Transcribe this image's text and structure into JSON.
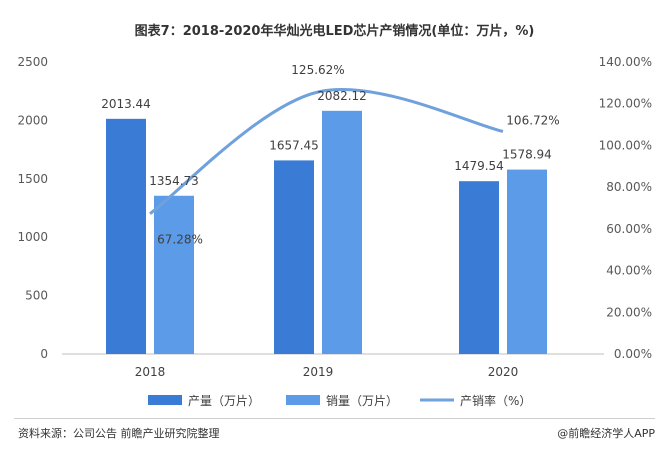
{
  "chart_data": {
    "type": "bar",
    "title": "图表7：2018-2020年华灿光电LED芯片产销情况(单位：万片，%)",
    "categories": [
      "2018",
      "2019",
      "2020"
    ],
    "series": [
      {
        "name": "产量（万片）",
        "kind": "bar",
        "axis": "left",
        "color": "#3a7bd5",
        "values": [
          2013.44,
          1657.45,
          1479.54
        ],
        "labels": [
          "2013.44",
          "1657.45",
          "1479.54"
        ]
      },
      {
        "name": "销量（万片）",
        "kind": "bar",
        "axis": "left",
        "color": "#5b9be8",
        "values": [
          1354.73,
          2082.12,
          1578.94
        ],
        "labels": [
          "1354.73",
          "2082.12",
          "1578.94"
        ]
      },
      {
        "name": "产销率（%）",
        "kind": "line",
        "axis": "right",
        "color": "#6fa1dc",
        "values": [
          67.28,
          125.62,
          106.72
        ],
        "labels": [
          "67.28%",
          "125.62%",
          "106.72%"
        ]
      }
    ],
    "y_left": {
      "min": 0,
      "max": 2500,
      "ticks": [
        "0",
        "500",
        "1000",
        "1500",
        "2000",
        "2500"
      ]
    },
    "y_right": {
      "min": 0,
      "max": 140,
      "ticks": [
        "0.00%",
        "20.00%",
        "40.00%",
        "60.00%",
        "80.00%",
        "100.00%",
        "120.00%",
        "140.00%"
      ]
    },
    "grid": false,
    "legend_position": "bottom"
  },
  "footer": {
    "source": "资料来源：公司公告 前瞻产业研究院整理",
    "brand": "@前瞻经济学人APP"
  }
}
